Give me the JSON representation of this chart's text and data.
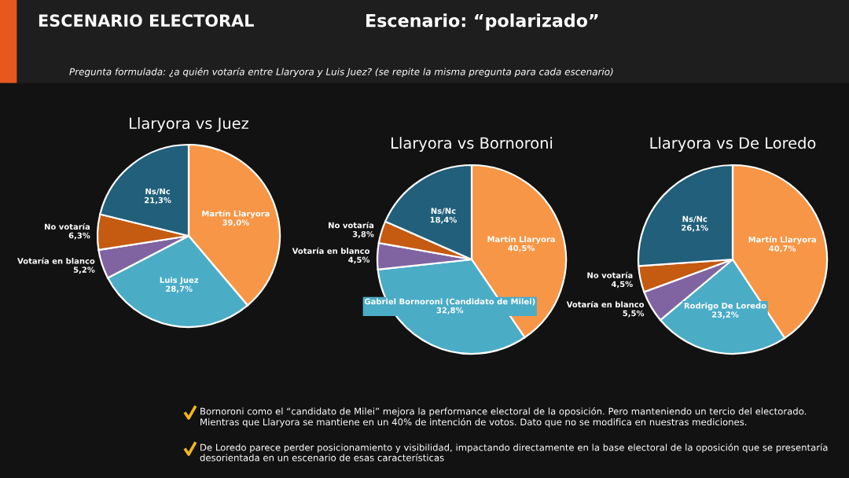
{
  "chart_data": [
    {
      "type": "other",
      "title": "ESCENARIO ELECTORAL",
      "subtitle": "Escenario: “polarizado”",
      "annotations": [
        "Pregunta formulada: ¿a quién votaría entre Llaryora y Luis Juez? (se repite la misma pregunta para cada escenario)",
        "Bornoroni como el “candidato de Milei” mejora la performance electoral de la oposición. Pero manteniendo un tercio del electorado. Mientras que Llaryora se mantiene en un 40% de intención de votos. Dato que no se modifica en nuestras mediciones.",
        "De Loredo parece perder posicionamiento y visibilidad, impactando directamente en la base electoral de la oposición que se presentaría desorientada en un escenario de esas características"
      ]
    },
    {
      "type": "pie",
      "title": "Llaryora vs Juez",
      "categories": [
        "Martín Llaryora",
        "Luis Juez",
        "Votaría en blanco",
        "No votaría",
        "Ns/Nc"
      ],
      "values": [
        39.0,
        28.7,
        5.2,
        6.3,
        21.3
      ],
      "value_labels": [
        "39,0%",
        "28,7%",
        "5,2%",
        "6,3%",
        "21,3%"
      ],
      "colors": [
        "#f79646",
        "#4bacc6",
        "#8064a2",
        "#c55a11",
        "#215f7a"
      ]
    },
    {
      "type": "pie",
      "title": "Llaryora vs Bornoroni",
      "categories": [
        "Martín Llaryora",
        "Gabriel Bornoroni (Candidato de Milei)",
        "Votaría en blanco",
        "No votaría",
        "Ns/Nc"
      ],
      "values": [
        40.5,
        32.8,
        4.5,
        3.8,
        18.4
      ],
      "value_labels": [
        "40,5%",
        "32,8%",
        "4,5%",
        "3,8%",
        "18,4%"
      ],
      "colors": [
        "#f79646",
        "#4bacc6",
        "#8064a2",
        "#c55a11",
        "#215f7a"
      ]
    },
    {
      "type": "pie",
      "title": "Llaryora vs De Loredo",
      "categories": [
        "Martín Llaryora",
        "Rodrigo De Loredo",
        "Votaría en blanco",
        "No votaría",
        "Ns/Nc"
      ],
      "values": [
        40.7,
        23.2,
        5.5,
        4.5,
        26.1
      ],
      "value_labels": [
        "40,7%",
        "23,2%",
        "5,5%",
        "4,5%",
        "26,1%"
      ],
      "colors": [
        "#f79646",
        "#4bacc6",
        "#8064a2",
        "#c55a11",
        "#215f7a"
      ]
    }
  ]
}
